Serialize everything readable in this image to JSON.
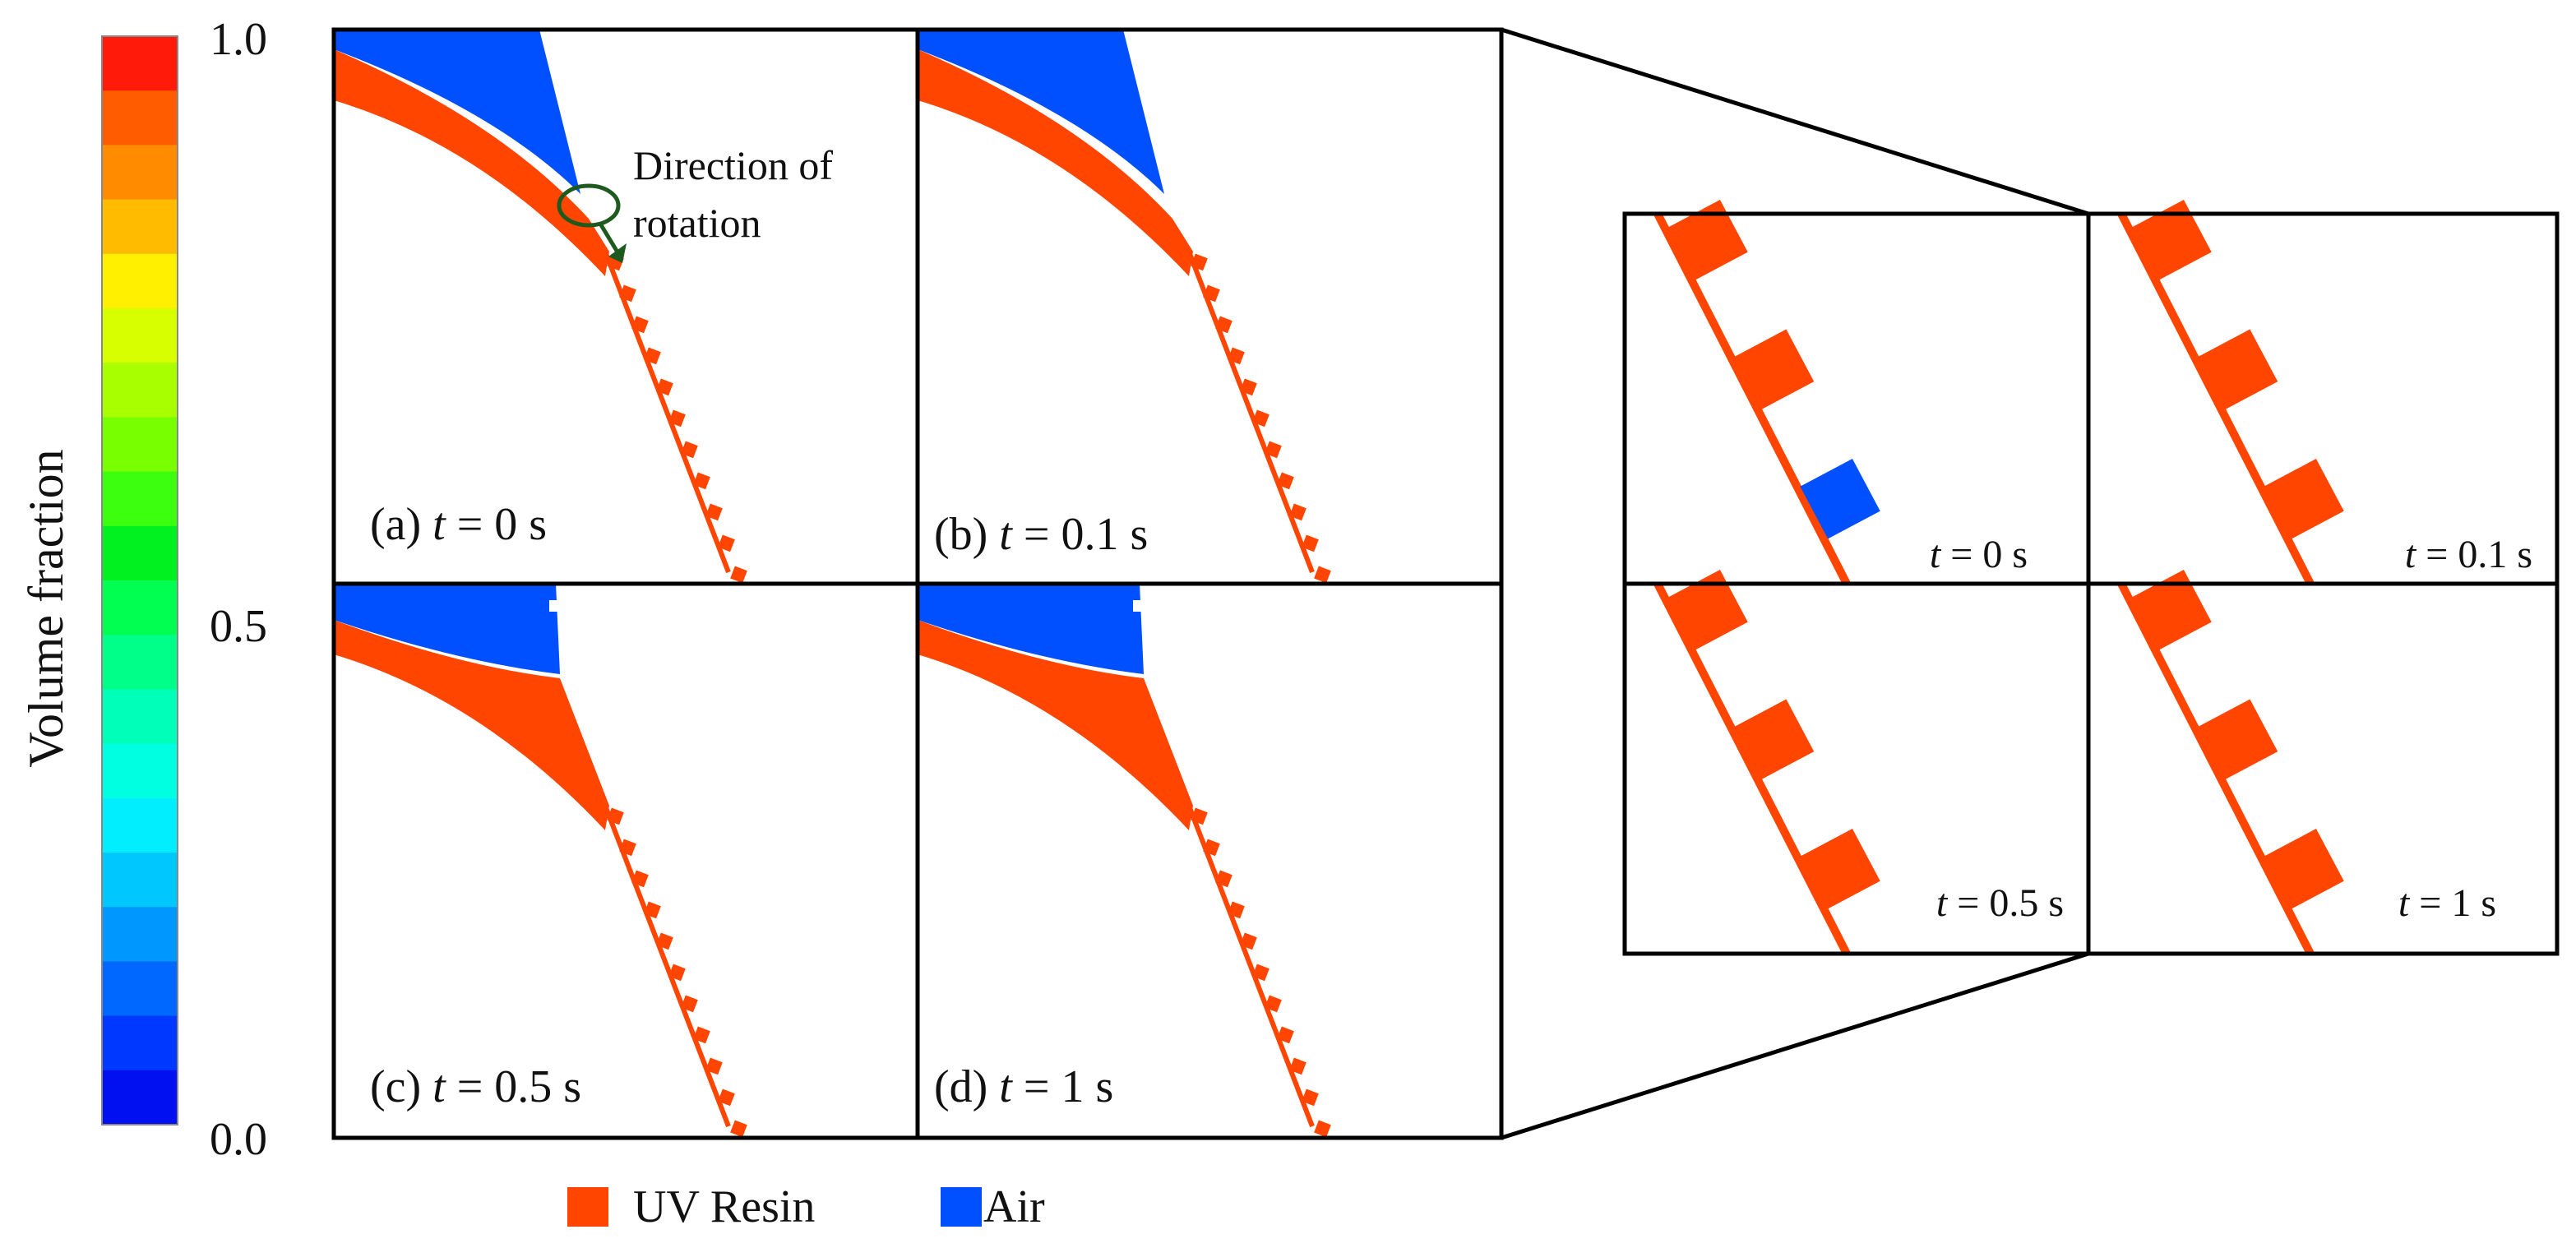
{
  "colorbar": {
    "label": "Volume fraction",
    "ticks": [
      "1.0",
      "0.5",
      "0.0"
    ],
    "colors": [
      "#ff1a0a",
      "#ff5c00",
      "#ff8c00",
      "#ffbb00",
      "#fff000",
      "#d8ff00",
      "#a8ff00",
      "#78ff00",
      "#3cff10",
      "#00f020",
      "#00ff50",
      "#00ff88",
      "#00ffb8",
      "#00ffe0",
      "#00eeff",
      "#00c8ff",
      "#0098ff",
      "#0068ff",
      "#0038ff",
      "#0010f0"
    ]
  },
  "panels": [
    {
      "tag": "(a)",
      "var": "t",
      "eq": "= 0 s"
    },
    {
      "tag": "(b)",
      "var": "t",
      "eq": "= 0.1 s"
    },
    {
      "tag": "(c)",
      "var": "t",
      "eq": "= 0.5 s"
    },
    {
      "tag": "(d)",
      "var": "t",
      "eq": "= 1 s"
    }
  ],
  "annotation": [
    "Direction of",
    "rotation"
  ],
  "zoom": [
    {
      "var": "t",
      "eq": "= 0 s"
    },
    {
      "var": "t",
      "eq": "= 0.1 s"
    },
    {
      "var": "t",
      "eq": "= 0.5 s"
    },
    {
      "var": "t",
      "eq": "= 1 s"
    }
  ],
  "legend": [
    {
      "name": "UV Resin",
      "color": "#ff4500"
    },
    {
      "name": "Air",
      "color": "#0050ff"
    }
  ]
}
